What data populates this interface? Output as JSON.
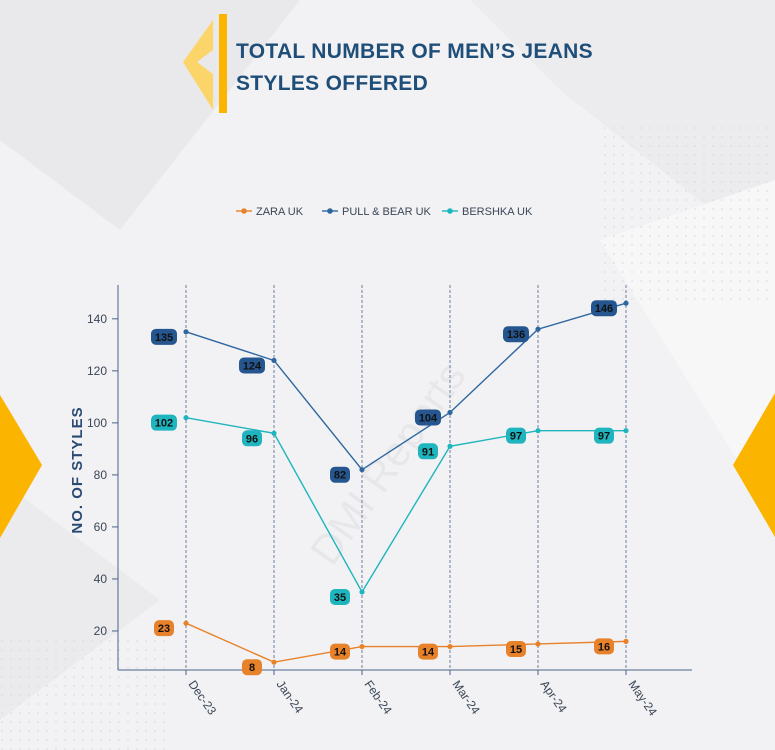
{
  "title": "TOTAL NUMBER OF MEN’S JEANS STYLES OFFERED",
  "watermark": "DMI Reports",
  "colors": {
    "accent": "#fbb400",
    "title": "#1f4e79",
    "zara": "#e8822a",
    "pullbear": "#2e67a0",
    "bershka": "#1fb5be",
    "label_pullbear_bg": "#25568f"
  },
  "chart_data": {
    "type": "line",
    "x": [
      "Dec-23",
      "Jan-24",
      "Feb-24",
      "Mar-24",
      "Apr-24",
      "May-24"
    ],
    "series": [
      {
        "name": "ZARA UK",
        "values": [
          23,
          8,
          14,
          14,
          15,
          16
        ]
      },
      {
        "name": "PULL & BEAR UK",
        "values": [
          135,
          124,
          82,
          104,
          136,
          146
        ]
      },
      {
        "name": "BERSHKA UK",
        "values": [
          102,
          96,
          35,
          91,
          97,
          97
        ]
      }
    ],
    "ylabel": "NO. OF STYLES",
    "xlabel": "",
    "yticks": [
      20,
      40,
      60,
      80,
      100,
      120,
      140
    ],
    "ylim": [
      5,
      153
    ],
    "grid": "vertical dashed lines at each category",
    "legend_position": "top-center"
  }
}
